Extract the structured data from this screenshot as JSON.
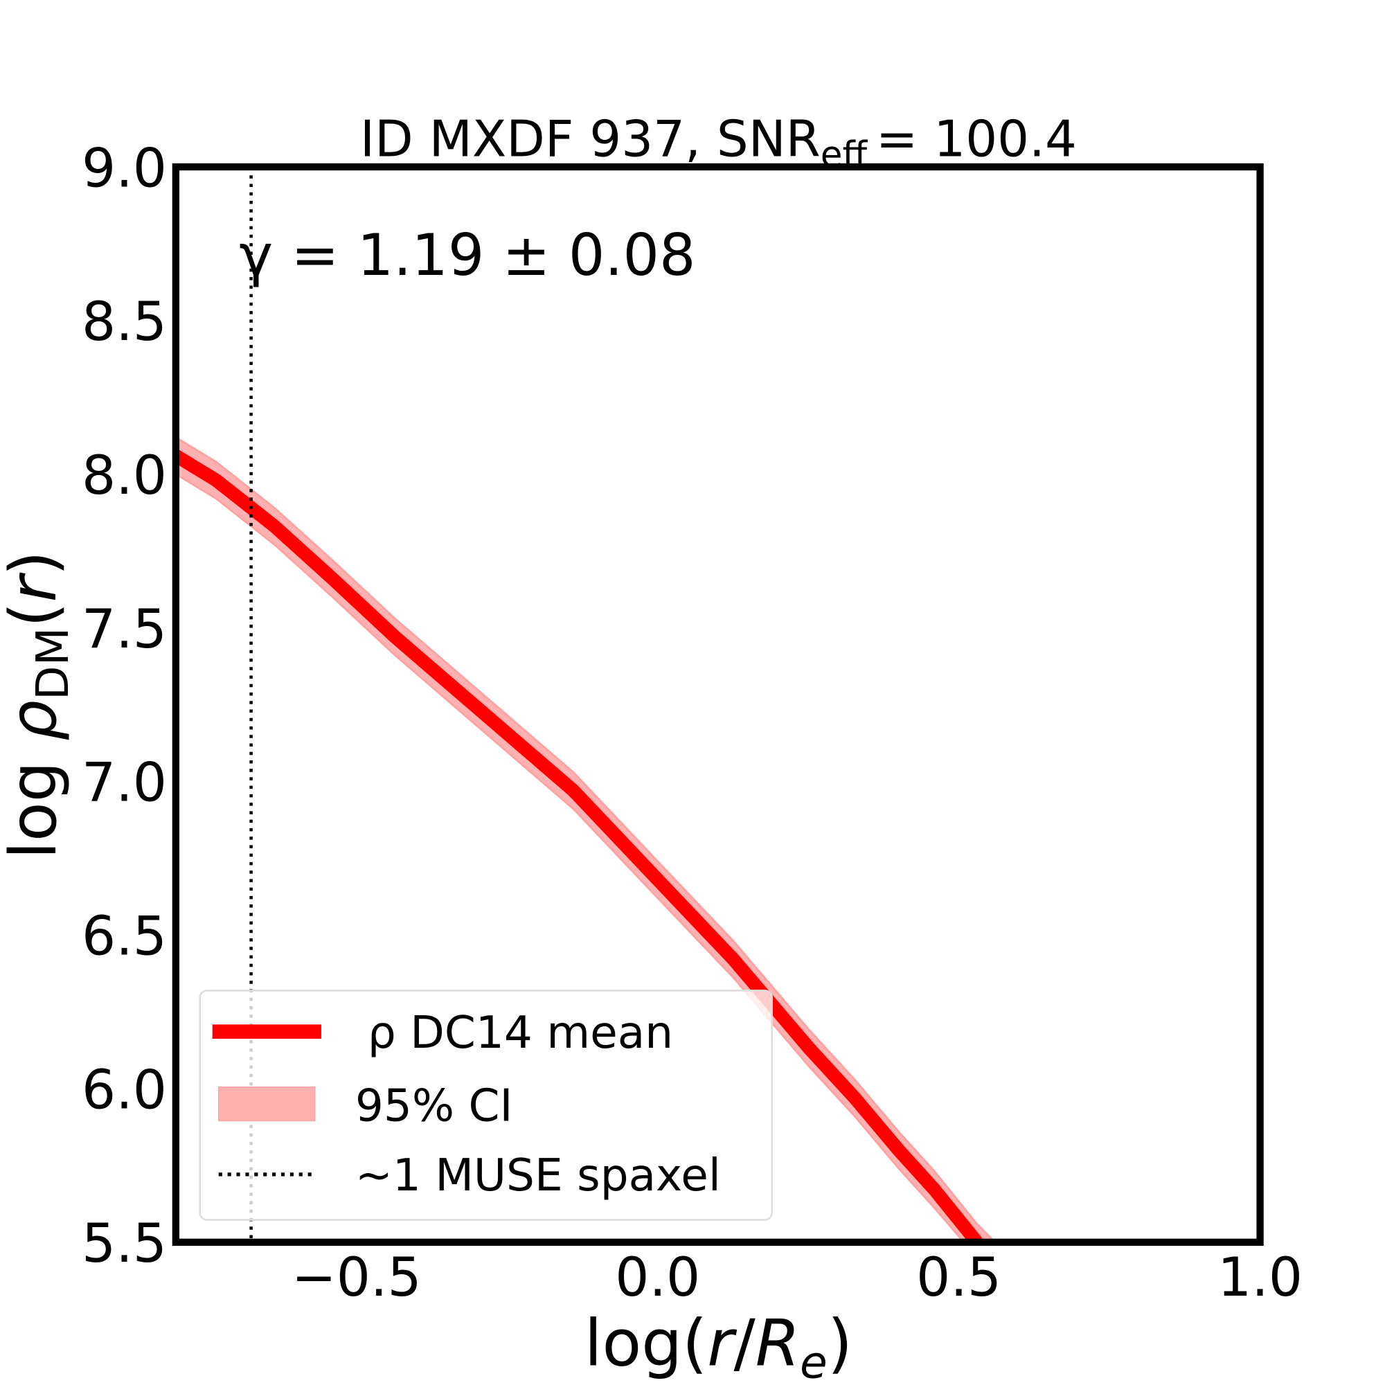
{
  "chart_data": {
    "type": "line",
    "title": "ID MXDF 937, SNR",
    "title_sub": "eff",
    "title_value": "= 100.4",
    "annotation": "γ = 1.19 ± 0.08",
    "xlabel": "log(r/R_e)",
    "ylabel": "log ρ_DM(r)",
    "xlim": [
      -0.8,
      1.0
    ],
    "ylim": [
      5.5,
      9.0
    ],
    "xticks": [
      "−0.5",
      "0.0",
      "0.5",
      "1.0"
    ],
    "xtick_values": [
      -0.5,
      0.0,
      0.5,
      1.0
    ],
    "yticks": [
      "5.5",
      "6.0",
      "6.5",
      "7.0",
      "7.5",
      "8.0",
      "8.5",
      "9.0"
    ],
    "ytick_values": [
      5.5,
      6.0,
      6.5,
      7.0,
      7.5,
      8.0,
      8.5,
      9.0
    ],
    "grid": false,
    "legend_position": "lower-left",
    "series": [
      {
        "name": "ρ DC14 mean",
        "color": "#ff0000",
        "x": [
          -0.8,
          -0.733,
          -0.636,
          -0.54,
          -0.436,
          -0.288,
          -0.14,
          0.0,
          0.126,
          0.252,
          0.327,
          0.4,
          0.46,
          0.53
        ],
        "y": [
          8.06,
          7.98,
          7.83,
          7.66,
          7.47,
          7.22,
          6.97,
          6.68,
          6.42,
          6.13,
          5.97,
          5.8,
          5.67,
          5.5
        ]
      }
    ],
    "band": {
      "name": "95% CI",
      "color": "#ffb0b0",
      "x": [
        -0.8,
        -0.733,
        -0.636,
        -0.54,
        -0.436,
        -0.288,
        -0.14,
        0.0,
        0.126,
        0.252,
        0.327,
        0.4,
        0.46,
        0.53,
        0.56
      ],
      "lower": [
        8.0,
        7.92,
        7.77,
        7.6,
        7.41,
        7.16,
        6.91,
        6.62,
        6.36,
        6.07,
        5.91,
        5.74,
        5.61,
        5.45,
        5.45
      ],
      "upper": [
        8.12,
        8.04,
        7.89,
        7.72,
        7.53,
        7.28,
        7.03,
        6.74,
        6.48,
        6.19,
        6.03,
        5.86,
        5.73,
        5.56,
        5.5
      ]
    },
    "vline": {
      "name": "~1 MUSE spaxel",
      "x": -0.675,
      "style": "dotted",
      "color": "#000000"
    }
  }
}
